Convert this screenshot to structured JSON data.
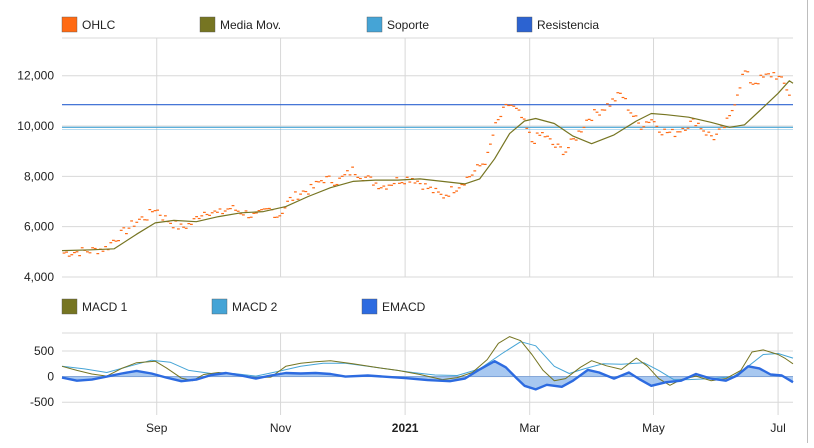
{
  "colors": {
    "ohlc": "#ff6a13",
    "ma": "#767522",
    "support": "#45a4d6",
    "resistance": "#2c63d1",
    "macd1": "#767522",
    "macd2": "#45a4d6",
    "emacd": "#2d6be0",
    "emacd_fill": "#9fc2ee",
    "grid": "#d8d8d8",
    "axis_text": "#222222"
  },
  "chart_data": [
    {
      "type": "line",
      "legend": [
        {
          "label": "OHLC",
          "color": "#ff6a13"
        },
        {
          "label": "Media Mov.",
          "color": "#767522"
        },
        {
          "label": "Soporte",
          "color": "#45a4d6"
        },
        {
          "label": "Resistencia",
          "color": "#2c63d1"
        }
      ],
      "legend_position": "top",
      "x_ticks": [
        {
          "label": "Sep",
          "value": 2020.667,
          "bold": false
        },
        {
          "label": "Nov",
          "value": 2020.833,
          "bold": false
        },
        {
          "label": "2021",
          "value": 2021.0,
          "bold": true
        },
        {
          "label": "Mar",
          "value": 2021.167,
          "bold": false
        },
        {
          "label": "May",
          "value": 2021.333,
          "bold": false
        },
        {
          "label": "Jul",
          "value": 2021.5,
          "bold": false
        }
      ],
      "xlim": [
        2020.54,
        2021.52
      ],
      "ylim": [
        4000,
        13500
      ],
      "y_ticks": [
        {
          "label": "4,000",
          "value": 4000
        },
        {
          "label": "6,000",
          "value": 6000
        },
        {
          "label": "8,000",
          "value": 8000
        },
        {
          "label": "10,000",
          "value": 10000
        },
        {
          "label": "12,000",
          "value": 12000
        }
      ],
      "grid": true,
      "support": 9950,
      "resistance": 10850,
      "ohlc_path": [
        [
          2020.54,
          4950
        ],
        [
          2020.56,
          5000
        ],
        [
          2020.58,
          5050
        ],
        [
          2020.6,
          5150
        ],
        [
          2020.61,
          5500
        ],
        [
          2020.62,
          5700
        ],
        [
          2020.635,
          6100
        ],
        [
          2020.645,
          6300
        ],
        [
          2020.655,
          6400
        ],
        [
          2020.665,
          6750
        ],
        [
          2020.675,
          6400
        ],
        [
          2020.69,
          6100
        ],
        [
          2020.7,
          5950
        ],
        [
          2020.715,
          6150
        ],
        [
          2020.725,
          6500
        ],
        [
          2020.735,
          6650
        ],
        [
          2020.75,
          6500
        ],
        [
          2020.765,
          6750
        ],
        [
          2020.78,
          6600
        ],
        [
          2020.8,
          6400
        ],
        [
          2020.81,
          6550
        ],
        [
          2020.82,
          6700
        ],
        [
          2020.83,
          6400
        ],
        [
          2020.845,
          7050
        ],
        [
          2020.86,
          7350
        ],
        [
          2020.875,
          7500
        ],
        [
          2020.89,
          7900
        ],
        [
          2020.91,
          7800
        ],
        [
          2020.93,
          8250
        ],
        [
          2020.95,
          7900
        ],
        [
          2020.97,
          7600
        ],
        [
          2020.99,
          7850
        ],
        [
          2021.01,
          7950
        ],
        [
          2021.03,
          7550
        ],
        [
          2021.05,
          7200
        ],
        [
          2021.07,
          7600
        ],
        [
          2021.09,
          8100
        ],
        [
          2021.11,
          8700
        ],
        [
          2021.12,
          9900
        ],
        [
          2021.13,
          10500
        ],
        [
          2021.14,
          10900
        ],
        [
          2021.155,
          10400
        ],
        [
          2021.17,
          9400
        ],
        [
          2021.185,
          9700
        ],
        [
          2021.2,
          9200
        ],
        [
          2021.215,
          9000
        ],
        [
          2021.23,
          9600
        ],
        [
          2021.245,
          10300
        ],
        [
          2021.26,
          10600
        ],
        [
          2021.275,
          10900
        ],
        [
          2021.29,
          11300
        ],
        [
          2021.3,
          10700
        ],
        [
          2021.315,
          10000
        ],
        [
          2021.33,
          10300
        ],
        [
          2021.345,
          9800
        ],
        [
          2021.36,
          9700
        ],
        [
          2021.375,
          10000
        ],
        [
          2021.39,
          10200
        ],
        [
          2021.405,
          9700
        ],
        [
          2021.415,
          9550
        ],
        [
          2021.425,
          9850
        ],
        [
          2021.435,
          10300
        ],
        [
          2021.445,
          11300
        ],
        [
          2021.455,
          12200
        ],
        [
          2021.465,
          11700
        ],
        [
          2021.48,
          11900
        ],
        [
          2021.495,
          12100
        ],
        [
          2021.51,
          11600
        ],
        [
          2021.52,
          11000
        ]
      ],
      "moving_average": [
        [
          2020.54,
          5050
        ],
        [
          2020.58,
          5080
        ],
        [
          2020.61,
          5120
        ],
        [
          2020.64,
          5700
        ],
        [
          2020.665,
          6150
        ],
        [
          2020.69,
          6250
        ],
        [
          2020.72,
          6200
        ],
        [
          2020.75,
          6400
        ],
        [
          2020.78,
          6550
        ],
        [
          2020.81,
          6600
        ],
        [
          2020.84,
          6800
        ],
        [
          2020.87,
          7200
        ],
        [
          2020.9,
          7550
        ],
        [
          2020.93,
          7800
        ],
        [
          2020.96,
          7850
        ],
        [
          2020.99,
          7850
        ],
        [
          2021.02,
          7900
        ],
        [
          2021.05,
          7800
        ],
        [
          2021.08,
          7700
        ],
        [
          2021.1,
          7900
        ],
        [
          2021.12,
          8700
        ],
        [
          2021.14,
          9700
        ],
        [
          2021.16,
          10200
        ],
        [
          2021.175,
          10300
        ],
        [
          2021.2,
          10100
        ],
        [
          2021.225,
          9600
        ],
        [
          2021.25,
          9300
        ],
        [
          2021.28,
          9650
        ],
        [
          2021.31,
          10200
        ],
        [
          2021.33,
          10500
        ],
        [
          2021.35,
          10450
        ],
        [
          2021.38,
          10350
        ],
        [
          2021.41,
          10150
        ],
        [
          2021.435,
          9950
        ],
        [
          2021.455,
          10050
        ],
        [
          2021.475,
          10600
        ],
        [
          2021.5,
          11300
        ],
        [
          2021.515,
          11800
        ],
        [
          2021.52,
          11700
        ]
      ]
    },
    {
      "type": "area",
      "legend": [
        {
          "label": "MACD 1",
          "color": "#767522"
        },
        {
          "label": "MACD 2",
          "color": "#45a4d6"
        },
        {
          "label": "EMACD",
          "color": "#2d6be0"
        }
      ],
      "legend_position": "top",
      "xlim": [
        2020.54,
        2021.52
      ],
      "ylim": [
        -750,
        850
      ],
      "y_ticks": [
        {
          "label": "500",
          "value": 500
        },
        {
          "label": "0",
          "value": 0
        },
        {
          "label": "-500",
          "value": -500
        }
      ],
      "grid": true,
      "series": [
        {
          "name": "MACD 1",
          "points": [
            [
              2020.54,
              200
            ],
            [
              2020.56,
              120
            ],
            [
              2020.58,
              50
            ],
            [
              2020.6,
              10
            ],
            [
              2020.62,
              160
            ],
            [
              2020.64,
              270
            ],
            [
              2020.665,
              300
            ],
            [
              2020.68,
              170
            ],
            [
              2020.7,
              -30
            ],
            [
              2020.715,
              -80
            ],
            [
              2020.73,
              40
            ],
            [
              2020.75,
              80
            ],
            [
              2020.77,
              50
            ],
            [
              2020.8,
              -20
            ],
            [
              2020.82,
              -10
            ],
            [
              2020.84,
              200
            ],
            [
              2020.86,
              260
            ],
            [
              2020.88,
              290
            ],
            [
              2020.9,
              310
            ],
            [
              2020.93,
              250
            ],
            [
              2020.96,
              180
            ],
            [
              2020.99,
              120
            ],
            [
              2021.02,
              40
            ],
            [
              2021.05,
              -60
            ],
            [
              2021.07,
              -20
            ],
            [
              2021.09,
              80
            ],
            [
              2021.11,
              330
            ],
            [
              2021.125,
              650
            ],
            [
              2021.14,
              780
            ],
            [
              2021.155,
              700
            ],
            [
              2021.17,
              430
            ],
            [
              2021.185,
              120
            ],
            [
              2021.2,
              -80
            ],
            [
              2021.215,
              -40
            ],
            [
              2021.235,
              180
            ],
            [
              2021.25,
              310
            ],
            [
              2021.27,
              210
            ],
            [
              2021.29,
              140
            ],
            [
              2021.31,
              360
            ],
            [
              2021.325,
              200
            ],
            [
              2021.34,
              -40
            ],
            [
              2021.355,
              -170
            ],
            [
              2021.37,
              -60
            ],
            [
              2021.39,
              10
            ],
            [
              2021.41,
              -80
            ],
            [
              2021.43,
              -40
            ],
            [
              2021.45,
              120
            ],
            [
              2021.465,
              480
            ],
            [
              2021.48,
              520
            ],
            [
              2021.5,
              430
            ],
            [
              2021.51,
              350
            ],
            [
              2021.52,
              250
            ]
          ]
        },
        {
          "name": "MACD 2",
          "points": [
            [
              2020.54,
              200
            ],
            [
              2020.57,
              150
            ],
            [
              2020.6,
              80
            ],
            [
              2020.63,
              200
            ],
            [
              2020.66,
              320
            ],
            [
              2020.685,
              280
            ],
            [
              2020.71,
              120
            ],
            [
              2020.74,
              60
            ],
            [
              2020.77,
              60
            ],
            [
              2020.8,
              10
            ],
            [
              2020.83,
              100
            ],
            [
              2020.86,
              200
            ],
            [
              2020.89,
              260
            ],
            [
              2020.92,
              260
            ],
            [
              2020.95,
              200
            ],
            [
              2020.98,
              140
            ],
            [
              2021.01,
              80
            ],
            [
              2021.04,
              30
            ],
            [
              2021.07,
              20
            ],
            [
              2021.1,
              150
            ],
            [
              2021.13,
              450
            ],
            [
              2021.155,
              680
            ],
            [
              2021.175,
              600
            ],
            [
              2021.2,
              200
            ],
            [
              2021.22,
              60
            ],
            [
              2021.24,
              150
            ],
            [
              2021.265,
              250
            ],
            [
              2021.29,
              240
            ],
            [
              2021.32,
              270
            ],
            [
              2021.34,
              120
            ],
            [
              2021.36,
              -60
            ],
            [
              2021.38,
              -60
            ],
            [
              2021.41,
              -40
            ],
            [
              2021.44,
              0
            ],
            [
              2021.46,
              200
            ],
            [
              2021.48,
              430
            ],
            [
              2021.5,
              450
            ],
            [
              2021.52,
              360
            ]
          ]
        },
        {
          "name": "EMACD",
          "points": [
            [
              2020.54,
              -20
            ],
            [
              2020.56,
              -80
            ],
            [
              2020.58,
              -60
            ],
            [
              2020.6,
              0
            ],
            [
              2020.62,
              60
            ],
            [
              2020.64,
              110
            ],
            [
              2020.66,
              60
            ],
            [
              2020.68,
              -20
            ],
            [
              2020.7,
              -90
            ],
            [
              2020.72,
              -60
            ],
            [
              2020.74,
              30
            ],
            [
              2020.76,
              70
            ],
            [
              2020.78,
              20
            ],
            [
              2020.8,
              -40
            ],
            [
              2020.82,
              20
            ],
            [
              2020.84,
              70
            ],
            [
              2020.86,
              60
            ],
            [
              2020.88,
              70
            ],
            [
              2020.9,
              50
            ],
            [
              2020.92,
              0
            ],
            [
              2020.95,
              20
            ],
            [
              2020.98,
              -10
            ],
            [
              2021.0,
              -30
            ],
            [
              2021.03,
              -70
            ],
            [
              2021.06,
              -90
            ],
            [
              2021.08,
              -40
            ],
            [
              2021.1,
              140
            ],
            [
              2021.12,
              300
            ],
            [
              2021.135,
              180
            ],
            [
              2021.15,
              -40
            ],
            [
              2021.16,
              -180
            ],
            [
              2021.175,
              -250
            ],
            [
              2021.19,
              -160
            ],
            [
              2021.21,
              -200
            ],
            [
              2021.225,
              -80
            ],
            [
              2021.245,
              130
            ],
            [
              2021.26,
              80
            ],
            [
              2021.28,
              -40
            ],
            [
              2021.3,
              80
            ],
            [
              2021.315,
              -60
            ],
            [
              2021.33,
              -180
            ],
            [
              2021.35,
              -110
            ],
            [
              2021.37,
              -80
            ],
            [
              2021.39,
              50
            ],
            [
              2021.41,
              -40
            ],
            [
              2021.43,
              -80
            ],
            [
              2021.445,
              20
            ],
            [
              2021.46,
              200
            ],
            [
              2021.475,
              160
            ],
            [
              2021.49,
              40
            ],
            [
              2021.505,
              20
            ],
            [
              2021.52,
              -110
            ]
          ]
        }
      ]
    }
  ]
}
